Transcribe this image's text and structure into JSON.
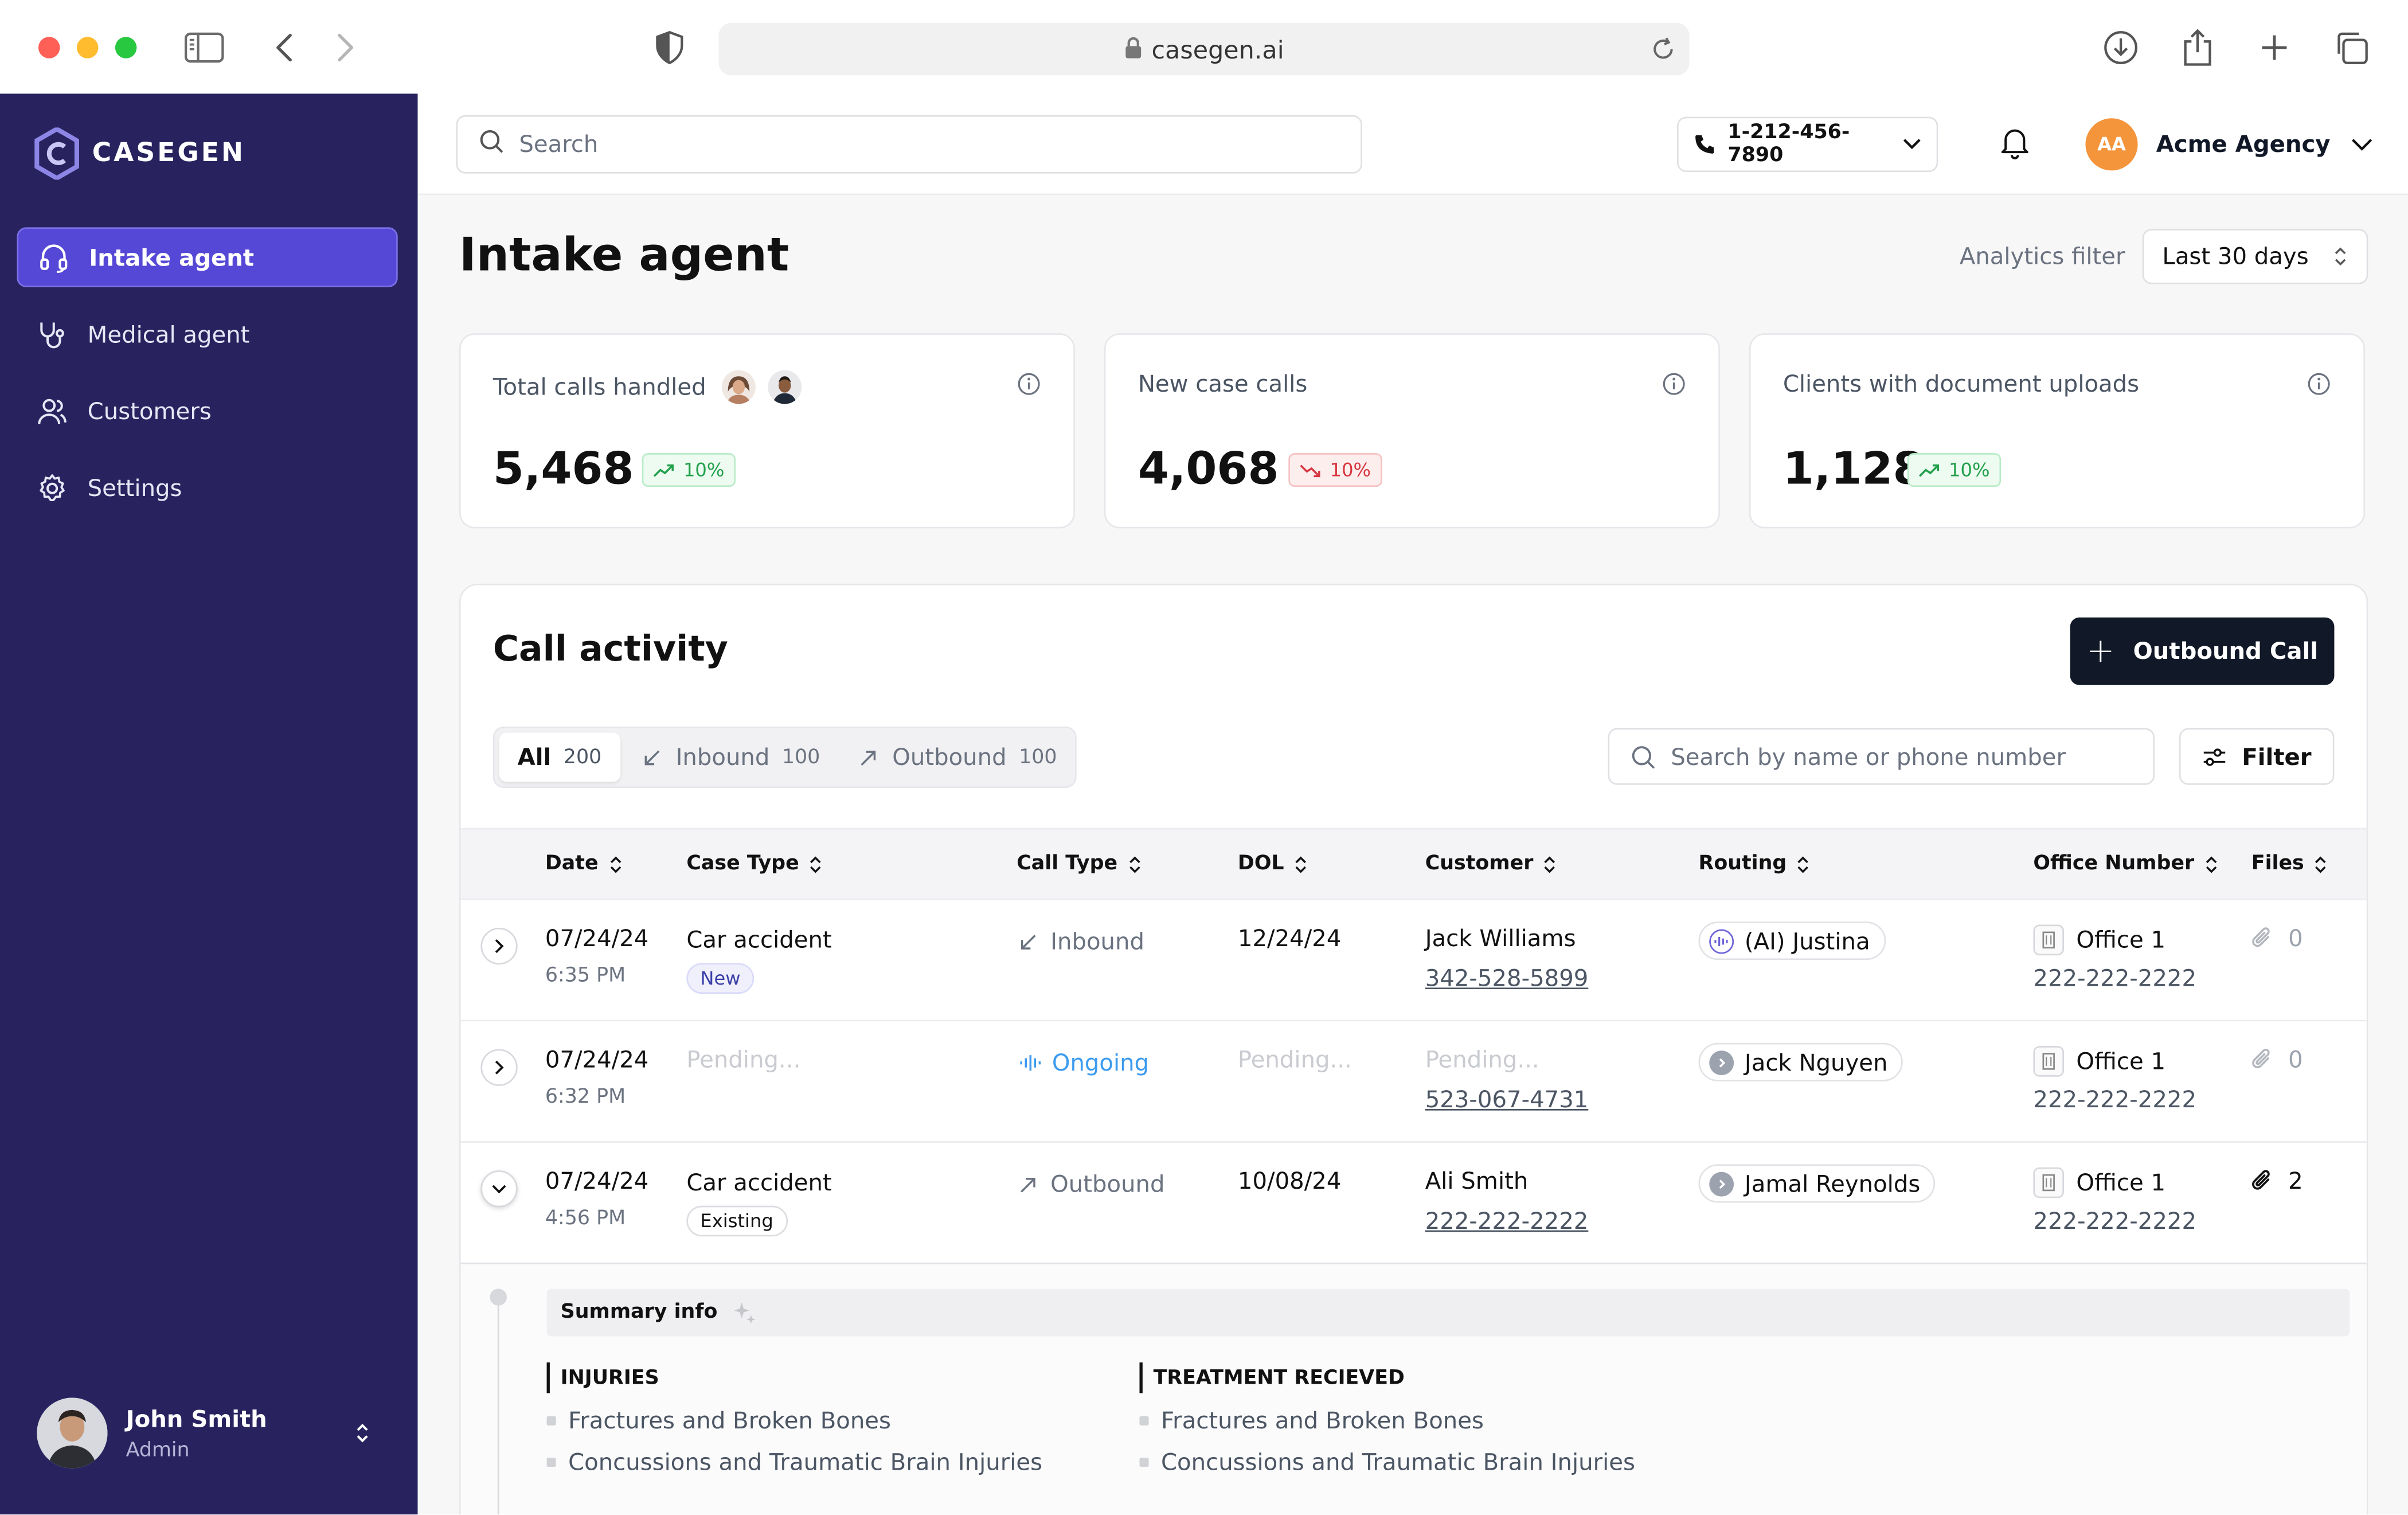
{
  "browser": {
    "url": "casegen.ai"
  },
  "sidebar": {
    "logo_text": "CASEGEN",
    "items": [
      {
        "label": "Intake agent",
        "icon": "headset-icon",
        "active": true
      },
      {
        "label": "Medical agent",
        "icon": "stethoscope-icon",
        "active": false
      },
      {
        "label": "Customers",
        "icon": "users-icon",
        "active": false
      },
      {
        "label": "Settings",
        "icon": "gear-icon",
        "active": false
      }
    ],
    "user": {
      "name": "John Smith",
      "role": "Admin"
    }
  },
  "topbar": {
    "search_placeholder": "Search",
    "phone": "1-212-456-7890",
    "agency_initials": "AA",
    "agency_name": "Acme Agency"
  },
  "page": {
    "title": "Intake agent",
    "analytics_label": "Analytics filter",
    "analytics_value": "Last 30 days"
  },
  "stats": [
    {
      "label": "Total calls handled",
      "value": "5,468",
      "change": "10%",
      "trend": "up"
    },
    {
      "label": "New case calls",
      "value": "4,068",
      "change": "10%",
      "trend": "down"
    },
    {
      "label": "Clients with document uploads",
      "value": "1,128",
      "change": "10%",
      "trend": "up"
    }
  ],
  "activity": {
    "title": "Call activity",
    "outbound_button": "Outbound Call",
    "tabs": [
      {
        "label": "All",
        "count": "200"
      },
      {
        "label": "Inbound",
        "count": "100"
      },
      {
        "label": "Outbound",
        "count": "100"
      }
    ],
    "search_placeholder": "Search by name or phone number",
    "filter_label": "Filter",
    "columns": [
      "Date",
      "Case Type",
      "Call Type",
      "DOL",
      "Customer",
      "Routing",
      "Office Number",
      "Files"
    ],
    "rows": [
      {
        "date": "07/24/24",
        "time": "6:35 PM",
        "case_type": "Car accident",
        "tag": "New",
        "call_type": "Inbound",
        "dol": "12/24/24",
        "customer": "Jack Williams",
        "phone": "342-528-5899",
        "routing": "(AI) Justina",
        "office": "Office 1",
        "office_phone": "222-222-2222",
        "files": "0"
      },
      {
        "date": "07/24/24",
        "time": "6:32 PM",
        "case_type": "Pending...",
        "tag": "",
        "call_type": "Ongoing",
        "dol": "Pending...",
        "customer": "Pending...",
        "phone": "523-067-4731",
        "routing": "Jack Nguyen",
        "office": "Office 1",
        "office_phone": "222-222-2222",
        "files": "0"
      },
      {
        "date": "07/24/24",
        "time": "4:56 PM",
        "case_type": "Car accident",
        "tag": "Existing",
        "call_type": "Outbound",
        "dol": "10/08/24",
        "customer": "Ali Smith",
        "phone": "222-222-2222",
        "routing": "Jamal Reynolds",
        "office": "Office 1",
        "office_phone": "222-222-2222",
        "files": "2"
      }
    ],
    "summary": {
      "title": "Summary info",
      "injuries_title": "INJURIES",
      "injuries": [
        "Fractures and Broken Bones",
        "Concussions and Traumatic Brain Injuries"
      ],
      "treatment_title": "TREATMENT RECIEVED",
      "treatment": [
        "Fractures and Broken Bones",
        "Concussions and Traumatic Brain Injuries"
      ]
    }
  },
  "colors": {
    "sidebar_bg": "#28235f",
    "active_nav": "#5648d6",
    "accent_orange": "#f4943b",
    "positive": "#22a04b",
    "negative": "#d7373f",
    "ongoing": "#3b9bf0"
  }
}
